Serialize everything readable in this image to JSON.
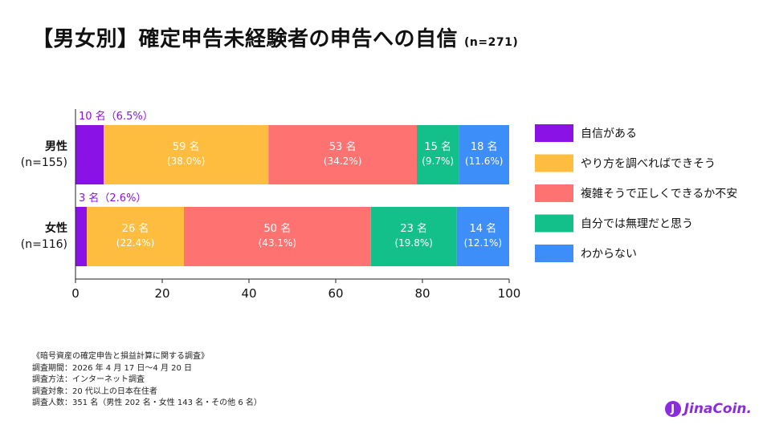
{
  "title": "【男女別】確定申告未経験者の申告への自信",
  "title_n": "(n=271)",
  "chart_data": {
    "type": "bar",
    "orientation": "horizontal-stacked",
    "xlim": [
      0,
      100
    ],
    "xticks": [
      "0",
      "20",
      "40",
      "60",
      "80",
      "100"
    ],
    "categories": [
      {
        "label": "男性",
        "n": "(n=155)"
      },
      {
        "label": "女性",
        "n": "(n=116)"
      }
    ],
    "series": [
      {
        "name": "自信がある",
        "color": "#8b12e6",
        "values": [
          6.5,
          2.6
        ],
        "counts": [
          "10 名",
          "3 名"
        ],
        "pcts": [
          "(6.5%)",
          "(2.6%)"
        ]
      },
      {
        "name": "やり方を調べればできそう",
        "color": "#ffbd40",
        "values": [
          38.0,
          22.4
        ],
        "counts": [
          "59 名",
          "26 名"
        ],
        "pcts": [
          "(38.0%)",
          "(22.4%)"
        ]
      },
      {
        "name": "複雑そうで正しくできるか不安",
        "color": "#ff7272",
        "values": [
          34.2,
          43.1
        ],
        "counts": [
          "53 名",
          "50 名"
        ],
        "pcts": [
          "(34.2%)",
          "(43.1%)"
        ]
      },
      {
        "name": "自分では無理だと思う",
        "color": "#14c08a",
        "values": [
          9.7,
          19.8
        ],
        "counts": [
          "15 名",
          "23 名"
        ],
        "pcts": [
          "(9.7%)",
          "(19.8%)"
        ]
      },
      {
        "name": "わからない",
        "color": "#3d8ef8",
        "values": [
          11.6,
          12.1
        ],
        "counts": [
          "18 名",
          "14 名"
        ],
        "pcts": [
          "(11.6%)",
          "(12.1%)"
        ]
      }
    ],
    "outside_labels": [
      "10 名（6.5%）",
      "3 名（2.6%）"
    ],
    "legend_position": "right",
    "grid": false
  },
  "notes": [
    "《暗号資産の確定申告と損益計算に関する調査》",
    "調査期間：2026 年 4 月 17 日〜4 月 20 日",
    "調査方法：インターネット調査",
    "調査対象：20 代以上の日本在住者",
    "調査人数：351 名（男性 202 名・女性 143 名・その他 6 名）"
  ],
  "logo": {
    "text": "JinaCoin.",
    "mark": "J"
  }
}
